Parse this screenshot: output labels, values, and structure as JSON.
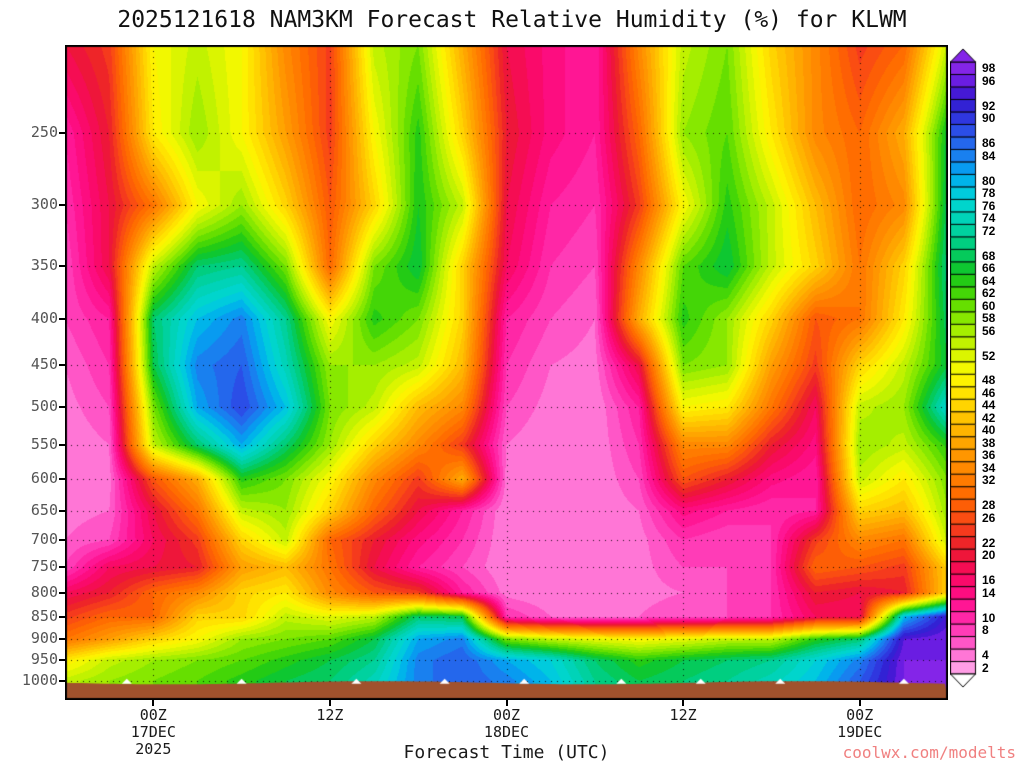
{
  "title": "2025121618 NAM3KM Forecast Relative Humidity (%) for KLWM",
  "xlabel": "Forecast Time (UTC)",
  "watermark": "coolwx.com/modelts",
  "colorbar": {
    "min": 2,
    "max": 98,
    "step": 2,
    "labels": [
      98,
      96,
      92,
      90,
      86,
      84,
      80,
      78,
      76,
      74,
      72,
      68,
      66,
      64,
      62,
      60,
      58,
      56,
      52,
      48,
      46,
      44,
      42,
      40,
      38,
      36,
      34,
      32,
      28,
      26,
      22,
      20,
      16,
      14,
      10,
      8,
      4,
      2
    ],
    "stops": [
      [
        0,
        "#FFFFFF"
      ],
      [
        2,
        "#FFB0EC"
      ],
      [
        6,
        "#FF63CF"
      ],
      [
        10,
        "#FF2FAF"
      ],
      [
        14,
        "#FF0E8B"
      ],
      [
        18,
        "#F8085F"
      ],
      [
        22,
        "#EA1B2D"
      ],
      [
        26,
        "#F84418"
      ],
      [
        30,
        "#FF6600"
      ],
      [
        34,
        "#FF8200"
      ],
      [
        38,
        "#FF9D00"
      ],
      [
        42,
        "#FFBB00"
      ],
      [
        46,
        "#FFDC00"
      ],
      [
        50,
        "#FDF900"
      ],
      [
        54,
        "#CFF400"
      ],
      [
        58,
        "#97EC00"
      ],
      [
        62,
        "#55DB00"
      ],
      [
        66,
        "#12C51C"
      ],
      [
        70,
        "#00CC70"
      ],
      [
        74,
        "#00D2AE"
      ],
      [
        78,
        "#00D6D6"
      ],
      [
        82,
        "#00A8F0"
      ],
      [
        86,
        "#2173EE"
      ],
      [
        90,
        "#2E41E4"
      ],
      [
        94,
        "#3317CF"
      ],
      [
        98,
        "#7C1FE8"
      ],
      [
        100,
        "#8B2BE8"
      ]
    ]
  },
  "chart_data": {
    "type": "heatmap",
    "title": "2025121618 NAM3KM Forecast Relative Humidity (%) for KLWM",
    "station": "KLWM",
    "units": "%",
    "value_range": [
      2,
      98
    ],
    "y_axis": {
      "scale": "log-pressure",
      "range": [
        200,
        1050
      ],
      "label_units": "hPa"
    },
    "y_ticks": [
      250,
      300,
      350,
      400,
      450,
      500,
      550,
      600,
      650,
      700,
      750,
      800,
      850,
      900,
      950,
      1000
    ],
    "x_ticks": [
      {
        "hour": 6,
        "lines": [
          "00Z",
          "17DEC",
          "2025"
        ]
      },
      {
        "hour": 18,
        "lines": [
          "12Z"
        ]
      },
      {
        "hour": 30,
        "lines": [
          "00Z",
          "18DEC"
        ]
      },
      {
        "hour": 42,
        "lines": [
          "12Z"
        ]
      },
      {
        "hour": 54,
        "lines": [
          "00Z",
          "19DEC"
        ]
      }
    ],
    "x_hours": [
      0,
      3,
      6,
      9,
      12,
      15,
      18,
      21,
      24,
      27,
      30,
      33,
      36,
      39,
      42,
      45,
      48,
      51,
      54,
      57,
      60
    ],
    "pressure_levels": [
      200,
      250,
      300,
      350,
      400,
      450,
      500,
      550,
      600,
      650,
      700,
      750,
      800,
      850,
      900,
      950,
      1000
    ],
    "values": [
      [
        20,
        25,
        50,
        55,
        50,
        35,
        25,
        55,
        60,
        40,
        20,
        15,
        12,
        35,
        55,
        60,
        45,
        35,
        25,
        30,
        55
      ],
      [
        12,
        22,
        48,
        58,
        50,
        38,
        25,
        50,
        65,
        45,
        22,
        15,
        12,
        30,
        58,
        62,
        48,
        35,
        30,
        40,
        68
      ],
      [
        10,
        20,
        32,
        50,
        58,
        45,
        28,
        45,
        66,
        55,
        20,
        12,
        10,
        25,
        50,
        65,
        55,
        42,
        30,
        35,
        70
      ],
      [
        8,
        20,
        55,
        70,
        72,
        60,
        30,
        60,
        68,
        45,
        18,
        10,
        8,
        35,
        62,
        68,
        55,
        45,
        32,
        45,
        72
      ],
      [
        8,
        12,
        70,
        80,
        85,
        72,
        50,
        65,
        60,
        45,
        12,
        8,
        6,
        40,
        65,
        58,
        45,
        28,
        32,
        48,
        70
      ],
      [
        6,
        10,
        68,
        85,
        88,
        75,
        58,
        58,
        55,
        42,
        10,
        6,
        5,
        20,
        60,
        58,
        38,
        25,
        45,
        55,
        68
      ],
      [
        5,
        8,
        60,
        82,
        90,
        80,
        60,
        55,
        42,
        35,
        8,
        5,
        4,
        12,
        50,
        48,
        32,
        18,
        55,
        58,
        78
      ],
      [
        4,
        6,
        55,
        70,
        82,
        70,
        58,
        45,
        35,
        25,
        6,
        4,
        4,
        10,
        35,
        35,
        22,
        15,
        58,
        55,
        65
      ],
      [
        4,
        5,
        28,
        40,
        65,
        60,
        50,
        35,
        25,
        40,
        5,
        4,
        4,
        8,
        28,
        22,
        15,
        12,
        55,
        48,
        60
      ],
      [
        5,
        6,
        20,
        32,
        55,
        58,
        45,
        30,
        20,
        12,
        4,
        4,
        4,
        6,
        15,
        12,
        10,
        12,
        45,
        42,
        58
      ],
      [
        6,
        8,
        18,
        25,
        45,
        55,
        30,
        22,
        15,
        10,
        4,
        4,
        4,
        5,
        10,
        8,
        10,
        25,
        35,
        32,
        55
      ],
      [
        8,
        18,
        20,
        22,
        38,
        42,
        32,
        20,
        12,
        8,
        4,
        4,
        4,
        5,
        8,
        8,
        10,
        30,
        28,
        25,
        45
      ],
      [
        18,
        22,
        30,
        35,
        45,
        48,
        35,
        28,
        25,
        12,
        5,
        4,
        4,
        5,
        6,
        8,
        10,
        22,
        20,
        22,
        45
      ],
      [
        25,
        30,
        30,
        45,
        45,
        55,
        52,
        55,
        70,
        68,
        10,
        6,
        5,
        6,
        8,
        8,
        10,
        18,
        18,
        80,
        95
      ],
      [
        32,
        38,
        45,
        50,
        58,
        60,
        62,
        68,
        82,
        85,
        60,
        55,
        52,
        50,
        52,
        55,
        55,
        65,
        70,
        96,
        98
      ],
      [
        48,
        55,
        58,
        60,
        62,
        65,
        68,
        72,
        85,
        88,
        82,
        78,
        70,
        65,
        68,
        70,
        72,
        78,
        85,
        98,
        98
      ],
      [
        55,
        58,
        60,
        62,
        65,
        68,
        70,
        75,
        85,
        88,
        85,
        80,
        72,
        68,
        70,
        72,
        75,
        80,
        88,
        98,
        98
      ]
    ],
    "terrain_color": "#A0522D",
    "terrain_notches": [
      0.07,
      0.2,
      0.33,
      0.43,
      0.52,
      0.63,
      0.72,
      0.81,
      0.95
    ]
  }
}
